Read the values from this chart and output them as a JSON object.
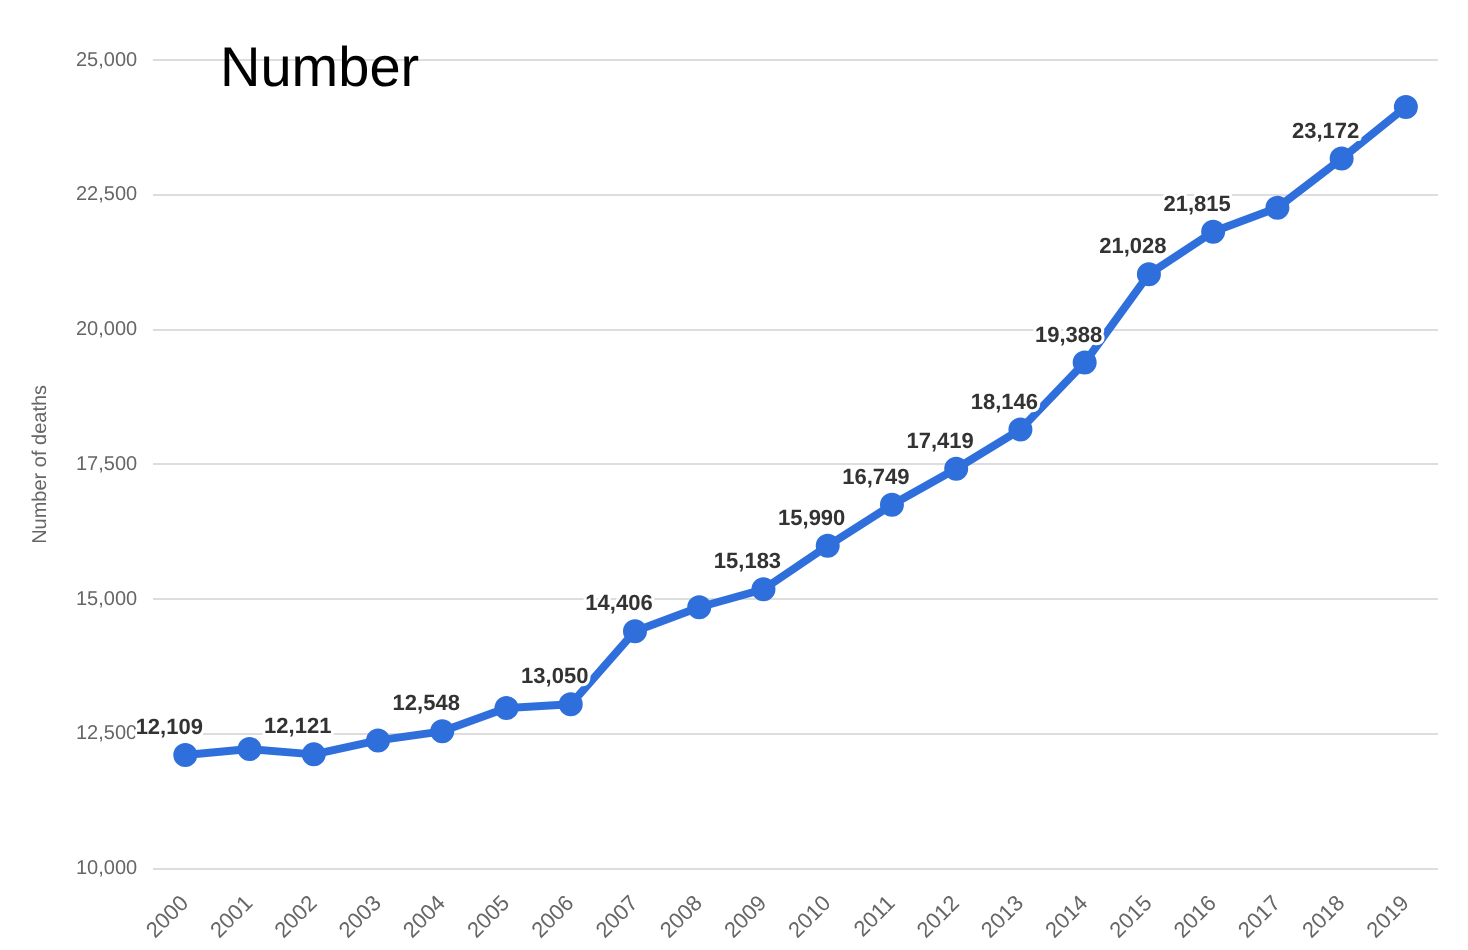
{
  "chart_data": {
    "type": "line",
    "title": "Number",
    "ylabel": "Number of deaths",
    "categories": [
      "2000",
      "2001",
      "2002",
      "2003",
      "2004",
      "2005",
      "2006",
      "2007",
      "2008",
      "2009",
      "2010",
      "2011",
      "2012",
      "2013",
      "2014",
      "2015",
      "2016",
      "2017",
      "2018",
      "2019"
    ],
    "series": [
      {
        "color": "#2f6fdc",
        "values": [
          12109,
          12220,
          12121,
          12380,
          12548,
          12980,
          13050,
          14406,
          14850,
          15183,
          15990,
          16749,
          17419,
          18146,
          19388,
          21028,
          21815,
          22260,
          23172,
          24130
        ],
        "value_labels": [
          "12,109",
          null,
          "12,121",
          null,
          "12,548",
          null,
          "13,050",
          "14,406",
          null,
          "15,183",
          "15,990",
          "16,749",
          "17,419",
          "18,146",
          "19,388",
          "21,028",
          "21,815",
          null,
          "23,172",
          null
        ]
      }
    ],
    "ylim": [
      10000,
      25000
    ],
    "yticks": [
      {
        "value": 10000,
        "label": "10,000"
      },
      {
        "value": 12500,
        "label": "12,500"
      },
      {
        "value": 15000,
        "label": "15,000"
      },
      {
        "value": 17500,
        "label": "17,500"
      },
      {
        "value": 20000,
        "label": "20,000"
      },
      {
        "value": 22500,
        "label": "22,500"
      },
      {
        "value": 25000,
        "label": "25,000"
      }
    ],
    "grid": "y",
    "legend": false,
    "marker": "circle",
    "line_style": "solid"
  }
}
